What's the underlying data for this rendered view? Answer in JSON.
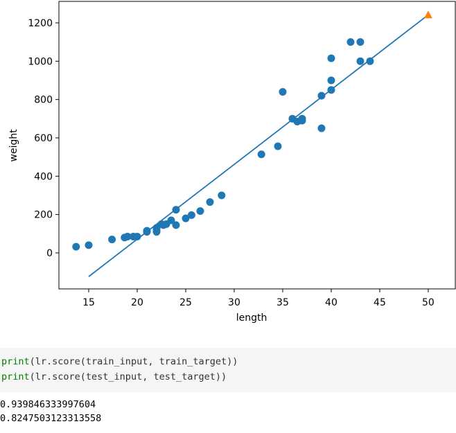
{
  "chart_data": {
    "type": "scatter",
    "xlabel": "length",
    "ylabel": "weight",
    "xlim": [
      11.93,
      52.79
    ],
    "ylim": [
      -188,
      1312
    ],
    "xticks": [
      15,
      20,
      25,
      30,
      35,
      40,
      45,
      50
    ],
    "yticks": [
      0,
      200,
      400,
      600,
      800,
      1000,
      1200
    ],
    "series": [
      {
        "kind": "scatter",
        "color": "#1f77b4",
        "x": [
          13.7,
          15,
          17.4,
          18.7,
          19,
          19.6,
          20,
          21,
          21,
          22,
          22,
          22,
          22.5,
          22.7,
          23,
          23.5,
          24,
          24,
          25,
          25.6,
          26.5,
          27.5,
          28.7,
          32.8,
          34.5,
          35,
          36,
          36.5,
          37,
          37,
          39,
          39,
          40,
          40,
          40,
          42,
          43,
          43,
          44
        ],
        "values": [
          32,
          40,
          70,
          80,
          85,
          85,
          85,
          110,
          115,
          110,
          130,
          120,
          150,
          145,
          150,
          170,
          145,
          225,
          180,
          197,
          218,
          265,
          300,
          514,
          556,
          840,
          700,
          685,
          690,
          700,
          650,
          820,
          850,
          900,
          1015,
          1100,
          1000,
          1100,
          1000
        ]
      },
      {
        "kind": "line",
        "color": "#1f77b4",
        "x": [
          15,
          50
        ],
        "values": [
          -123.76,
          1241.84
        ]
      },
      {
        "kind": "triangle",
        "color": "#ff7f0e",
        "x": [
          50
        ],
        "values": [
          1241.84
        ]
      }
    ]
  },
  "notebook": {
    "code": [
      {
        "func": "print",
        "args": "(lr.score(train_input, train_target))"
      },
      {
        "func": "print",
        "args": "(lr.score(test_input, test_target))"
      }
    ],
    "output": [
      "0.939846333997604",
      "0.8247503123313558"
    ]
  }
}
